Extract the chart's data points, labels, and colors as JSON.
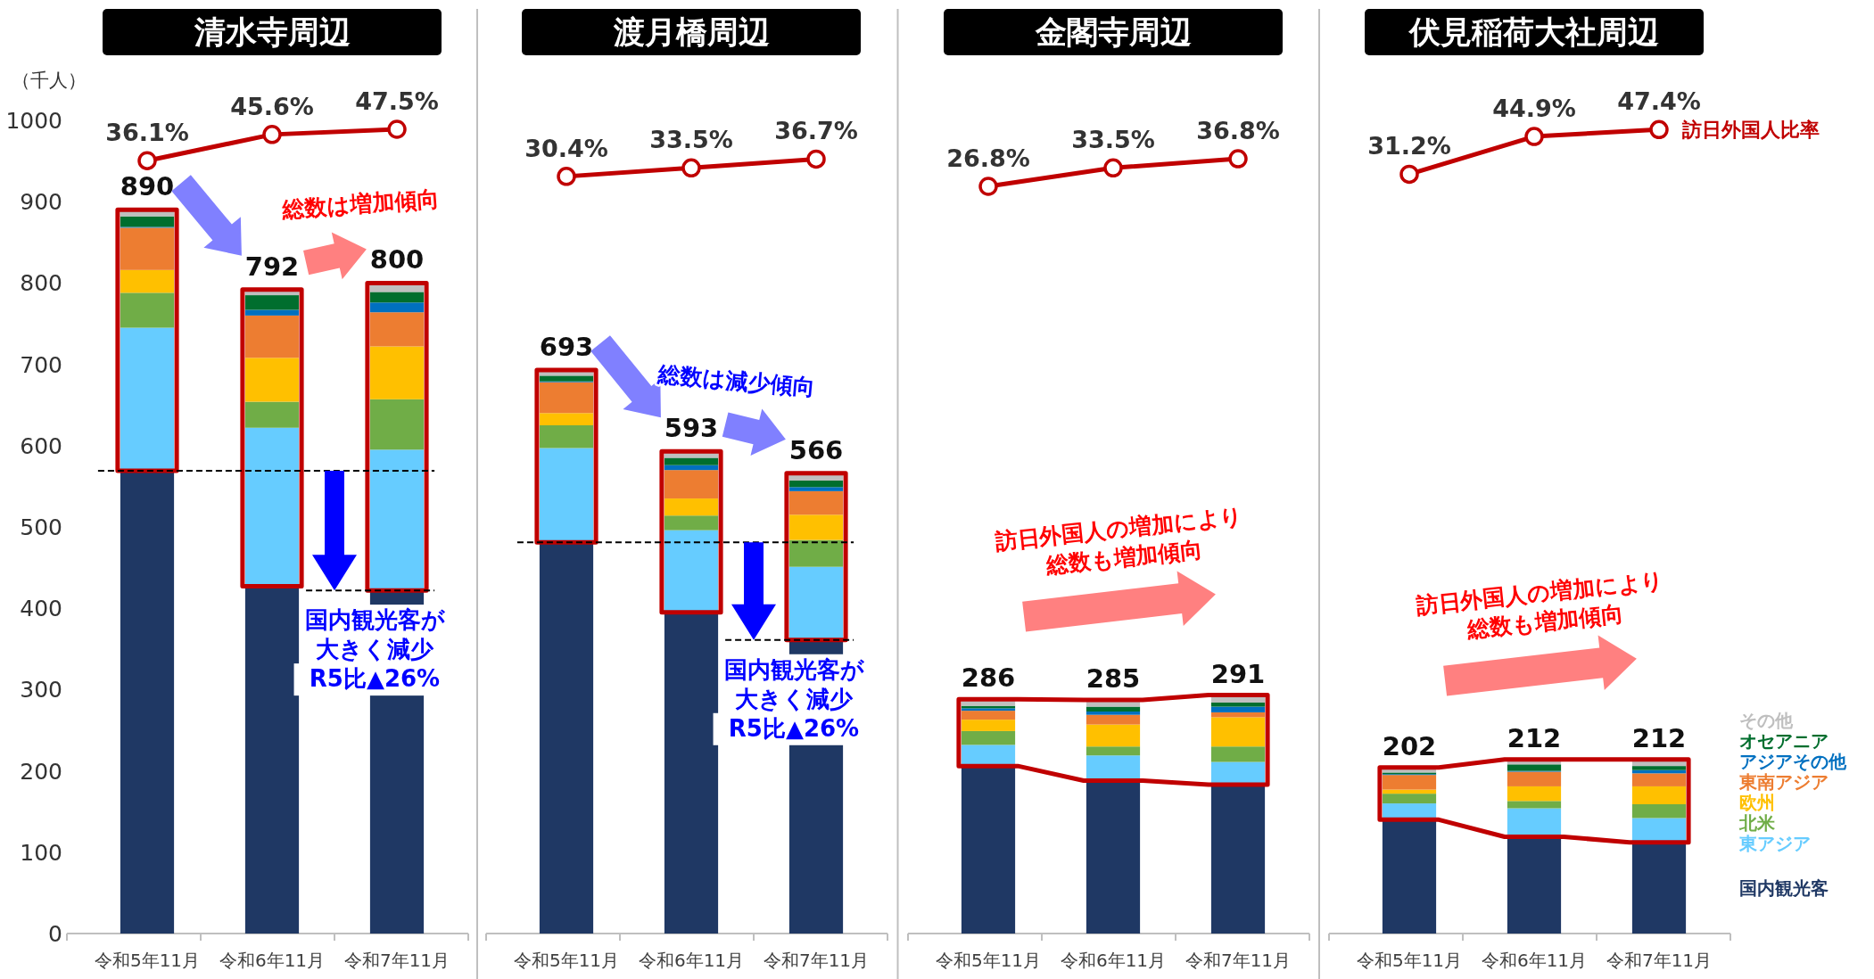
{
  "chart_data": [
    {
      "type": "bar",
      "title": "清水寺周辺",
      "ylabel": "（千人）",
      "categories": [
        "令和5年11月",
        "令和6年11月",
        "令和7年11月"
      ],
      "stacked": true,
      "ylim": [
        0,
        1000
      ],
      "yticks": [
        0,
        100,
        200,
        300,
        400,
        500,
        600,
        700,
        800,
        900,
        1000
      ],
      "tick_labels": "xy",
      "marker": "circle",
      "totals": [
        "890",
        "792",
        "800"
      ],
      "series": [
        {
          "color": "#1f3864",
          "values": [
            569,
            427,
            422
          ]
        },
        {
          "color": "#66ccff",
          "values": [
            176,
            195,
            173
          ]
        },
        {
          "color": "#70ad47",
          "values": [
            43,
            32,
            62
          ]
        },
        {
          "color": "#ffc000",
          "values": [
            28,
            54,
            65
          ]
        },
        {
          "color": "#ed7d31",
          "values": [
            52,
            52,
            42
          ]
        },
        {
          "color": "#0070c0",
          "values": [
            1,
            7,
            12
          ]
        },
        {
          "color": "#006e2e",
          "values": [
            13,
            18,
            13
          ]
        },
        {
          "color": "#bfbfbf",
          "values": [
            8,
            7,
            11
          ]
        },
        {
          "type": "line",
          "axis": "y2",
          "color": "#c00000",
          "values": [
            36.1,
            45.6,
            47.5
          ],
          "value_labels": [
            "36.1%",
            "45.6%",
            "47.5%"
          ]
        }
      ],
      "ref_lines": [
        {
          "axis": "y",
          "value": 569,
          "line_style": "dashed",
          "color": "#000000"
        },
        {
          "axis": "y",
          "value": 422,
          "line_style": "dashed",
          "color": "#000000"
        }
      ],
      "annotations": [
        "総数は増加傾向",
        "国内観光客が",
        "大きく減少",
        "R5比▲26%"
      ]
    },
    {
      "type": "bar",
      "title": "渡月橋周辺",
      "categories": [
        "令和5年11月",
        "令和6年11月",
        "令和7年11月"
      ],
      "stacked": true,
      "ylim": [
        0,
        1000
      ],
      "tick_labels": "x",
      "marker": "circle",
      "totals": [
        "693",
        "593",
        "566"
      ],
      "series": [
        {
          "color": "#1f3864",
          "values": [
            481,
            395,
            361
          ]
        },
        {
          "color": "#66ccff",
          "values": [
            116,
            101,
            90
          ]
        },
        {
          "color": "#70ad47",
          "values": [
            28,
            18,
            33
          ]
        },
        {
          "color": "#ffc000",
          "values": [
            15,
            21,
            31
          ]
        },
        {
          "color": "#ed7d31",
          "values": [
            38,
            35,
            29
          ]
        },
        {
          "color": "#0070c0",
          "values": [
            1,
            6,
            5
          ]
        },
        {
          "color": "#006e2e",
          "values": [
            7,
            9,
            8
          ]
        },
        {
          "color": "#bfbfbf",
          "values": [
            7,
            8,
            9
          ]
        },
        {
          "type": "line",
          "axis": "y2",
          "color": "#c00000",
          "values": [
            30.4,
            33.5,
            36.7
          ],
          "value_labels": [
            "30.4%",
            "33.5%",
            "36.7%"
          ]
        }
      ],
      "ref_lines": [
        {
          "axis": "y",
          "value": 481,
          "line_style": "dashed",
          "color": "#000000"
        },
        {
          "axis": "y",
          "value": 361,
          "line_style": "dashed",
          "color": "#000000"
        }
      ],
      "annotations": [
        "総数は減少傾向",
        "国内観光客が",
        "大きく減少",
        "R5比▲26%"
      ]
    },
    {
      "type": "bar",
      "title": "金閣寺周辺",
      "categories": [
        "令和5年11月",
        "令和6年11月",
        "令和7年11月"
      ],
      "stacked": true,
      "ylim": [
        0,
        1000
      ],
      "tick_labels": "x",
      "marker": "circle",
      "totals": [
        "286",
        "285",
        "291"
      ],
      "series": [
        {
          "color": "#1f3864",
          "values": [
            206,
            188,
            183
          ]
        },
        {
          "color": "#66ccff",
          "values": [
            26,
            31,
            28
          ]
        },
        {
          "color": "#70ad47",
          "values": [
            17,
            11,
            19
          ]
        },
        {
          "color": "#ffc000",
          "values": [
            14,
            27,
            36
          ]
        },
        {
          "color": "#ed7d31",
          "values": [
            11,
            12,
            6
          ]
        },
        {
          "color": "#0070c0",
          "values": [
            3,
            4,
            7
          ]
        },
        {
          "color": "#006e2e",
          "values": [
            3,
            6,
            5
          ]
        },
        {
          "color": "#bfbfbf",
          "values": [
            6,
            6,
            7
          ]
        },
        {
          "type": "line",
          "axis": "y2",
          "color": "#c00000",
          "values": [
            26.8,
            33.5,
            36.8
          ],
          "value_labels": [
            "26.8%",
            "33.5%",
            "36.8%"
          ]
        }
      ],
      "annotations": [
        "訪日外国人の増加により",
        "総数も増加傾向"
      ]
    },
    {
      "type": "bar",
      "title": "伏見稲荷大社周辺",
      "categories": [
        "令和5年11月",
        "令和6年11月",
        "令和7年11月"
      ],
      "stacked": true,
      "ylim": [
        0,
        1000
      ],
      "tick_labels": "x",
      "marker": "circle",
      "legend": "right",
      "totals": [
        "202",
        "212",
        "212"
      ],
      "series": [
        {
          "name": "国内観光客",
          "color": "#1f3864",
          "values": [
            140,
            119,
            112
          ]
        },
        {
          "name": "東アジア",
          "color": "#66ccff",
          "values": [
            20,
            35,
            30
          ]
        },
        {
          "name": "北米",
          "color": "#70ad47",
          "values": [
            12,
            9,
            17
          ]
        },
        {
          "name": "欧州",
          "color": "#ffc000",
          "values": [
            5,
            18,
            22
          ]
        },
        {
          "name": "東南アジア",
          "color": "#ed7d31",
          "values": [
            18,
            18,
            16
          ]
        },
        {
          "name": "アジアその他",
          "color": "#0070c0",
          "values": [
            1,
            1,
            4
          ]
        },
        {
          "name": "オセアニア",
          "color": "#006e2e",
          "values": [
            2,
            8,
            5
          ]
        },
        {
          "name": "その他",
          "color": "#bfbfbf",
          "values": [
            4,
            4,
            6
          ]
        },
        {
          "type": "line",
          "axis": "y2",
          "name": "訪日外国人比率",
          "color": "#c00000",
          "values": [
            31.2,
            44.9,
            47.4
          ],
          "value_labels": [
            "31.2%",
            "44.9%",
            "47.4%"
          ]
        }
      ],
      "annotations": [
        "訪日外国人の増加により",
        "総数も増加傾向"
      ]
    }
  ]
}
